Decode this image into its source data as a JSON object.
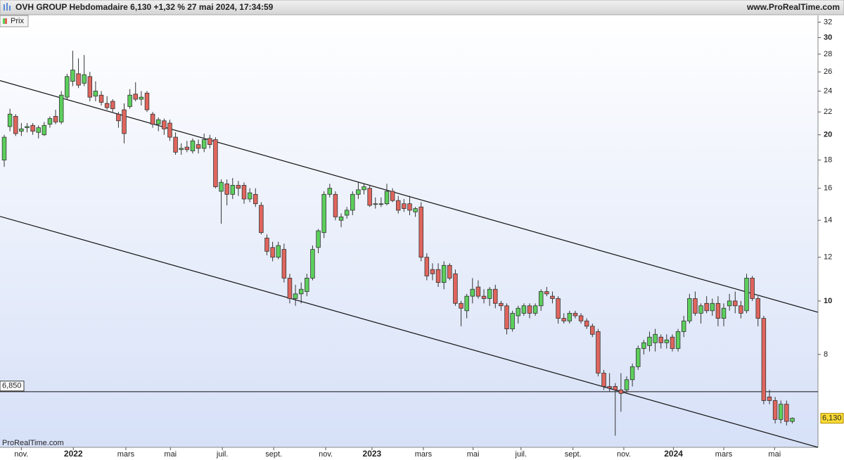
{
  "chart_data": {
    "type": "candlestick",
    "title": "OVH GROUP Hebdomadaire 6,130 +1,32 % 27 mai 2024, 17:34:59",
    "source": "www.ProRealTime.com",
    "watermark": "ProRealTime.com",
    "legend": "Prix",
    "log_scale": true,
    "up_color": "#5ccf5c",
    "down_color": "#e0655d",
    "ylim": [
      5.43,
      32.9
    ],
    "yticks": [
      8,
      10,
      12,
      14,
      16,
      18,
      20,
      22,
      24,
      26,
      28,
      30,
      32
    ],
    "xlim": [
      -0.74,
      142.5
    ],
    "xticks": [
      {
        "value": 3.0,
        "label": "nov."
      },
      {
        "value": 12.1,
        "label": "2022"
      },
      {
        "value": 21.3,
        "label": "mars"
      },
      {
        "value": 29.1,
        "label": "mai"
      },
      {
        "value": 38.2,
        "label": "juil."
      },
      {
        "value": 47.2,
        "label": "sept."
      },
      {
        "value": 56.3,
        "label": "nov."
      },
      {
        "value": 64.4,
        "label": "2023"
      },
      {
        "value": 73.4,
        "label": "mars"
      },
      {
        "value": 82.1,
        "label": "mai"
      },
      {
        "value": 90.5,
        "label": "juil."
      },
      {
        "value": 99.6,
        "label": "sept."
      },
      {
        "value": 108.5,
        "label": "nov."
      },
      {
        "value": 117.2,
        "label": "2024"
      },
      {
        "value": 126.0,
        "label": "mars"
      },
      {
        "value": 134.9,
        "label": "mai"
      }
    ],
    "open": [
      18.0,
      20.7,
      21.6,
      20.3,
      20.6,
      20.8,
      20.2,
      20.0,
      20.9,
      21.6,
      21.1,
      23.4,
      25.0,
      25.8,
      24.8,
      25.5,
      23.5,
      23.6,
      22.8,
      23.0,
      21.8,
      22.2,
      22.5,
      23.7,
      23.2,
      23.8,
      21.8,
      20.9,
      21.2,
      21.0,
      19.8,
      18.8,
      19.0,
      18.7,
      19.2,
      18.9,
      19.7,
      19.6,
      15.8,
      16.3,
      15.6,
      16.2,
      16.2,
      15.3,
      15.6,
      14.9,
      13.0,
      12.5,
      12.0,
      12.4,
      11.0,
      10.1,
      10.3,
      10.4,
      11.0,
      12.5,
      13.3,
      15.6,
      15.6,
      14.0,
      14.3,
      14.6,
      15.6,
      15.9,
      16.0,
      15.0,
      15.0,
      15.0,
      15.8,
      15.2,
      15.0,
      15.0,
      14.5,
      14.8,
      12.0,
      11.4,
      11.4,
      10.8,
      11.6,
      11.2,
      9.9,
      9.6,
      10.2,
      10.6,
      10.2,
      10.1,
      10.5,
      9.9,
      9.8,
      8.9,
      9.4,
      9.5,
      9.8,
      9.5,
      9.8,
      10.4,
      10.2,
      10.1,
      9.3,
      9.2,
      9.5,
      9.4,
      9.2,
      9.0,
      8.8,
      7.4,
      7.0,
      7.0,
      6.9,
      6.9,
      7.2,
      7.6,
      8.2,
      8.3,
      8.4,
      8.6,
      8.4,
      8.6,
      8.2,
      8.8,
      9.2,
      10.1,
      9.5,
      9.9,
      9.6,
      9.9,
      9.3,
      9.8,
      10.0,
      9.8,
      9.6,
      11.0,
      10.1,
      9.3,
      6.7,
      6.6,
      6.1,
      6.5,
      6.05
    ],
    "high": [
      20.0,
      22.3,
      21.8,
      21.0,
      21.0,
      21.0,
      20.8,
      21.1,
      21.6,
      22.2,
      24.0,
      25.8,
      28.4,
      27.5,
      27.9,
      26.0,
      25.0,
      24.0,
      23.5,
      23.2,
      22.0,
      22.8,
      24.2,
      24.9,
      24.0,
      24.0,
      22.0,
      21.5,
      21.4,
      21.3,
      20.2,
      19.3,
      19.5,
      19.7,
      19.6,
      20.1,
      20.0,
      19.8,
      16.6,
      16.6,
      16.7,
      16.5,
      16.4,
      16.0,
      16.0,
      15.1,
      13.2,
      12.8,
      12.8,
      12.7,
      11.2,
      10.7,
      10.8,
      11.2,
      12.6,
      13.5,
      15.8,
      16.3,
      15.8,
      14.4,
      14.8,
      15.8,
      16.4,
      16.3,
      16.2,
      15.4,
      15.4,
      16.3,
      16.0,
      15.5,
      15.3,
      15.5,
      14.8,
      15.1,
      12.2,
      11.7,
      11.7,
      11.8,
      11.7,
      11.4,
      10.0,
      10.3,
      11.0,
      10.9,
      10.5,
      10.6,
      10.7,
      10.0,
      9.9,
      9.6,
      9.8,
      9.9,
      9.9,
      9.9,
      10.5,
      10.6,
      10.4,
      10.2,
      9.5,
      9.6,
      9.6,
      9.5,
      9.3,
      9.1,
      8.9,
      7.5,
      7.4,
      7.1,
      7.4,
      7.3,
      7.7,
      8.3,
      8.5,
      8.8,
      8.9,
      8.7,
      8.7,
      8.7,
      8.9,
      9.4,
      10.3,
      10.4,
      9.9,
      10.2,
      10.1,
      10.2,
      9.9,
      10.3,
      10.4,
      10.0,
      11.2,
      11.1,
      10.2,
      9.4,
      6.9,
      6.7,
      6.6,
      6.6,
      6.15
    ],
    "low": [
      17.5,
      20.3,
      19.9,
      19.9,
      20.2,
      20.0,
      19.7,
      19.9,
      20.6,
      20.9,
      20.9,
      23.2,
      24.5,
      24.3,
      24.5,
      23.0,
      23.0,
      22.6,
      22.2,
      22.0,
      20.6,
      19.3,
      22.3,
      23.0,
      22.6,
      22.0,
      20.6,
      20.3,
      20.0,
      19.5,
      18.4,
      18.4,
      18.6,
      18.5,
      18.5,
      18.6,
      18.9,
      16.0,
      13.8,
      14.9,
      15.3,
      15.5,
      15.0,
      15.1,
      14.8,
      13.2,
      12.1,
      11.8,
      11.9,
      10.8,
      9.9,
      9.8,
      9.9,
      10.2,
      10.9,
      12.2,
      13.0,
      15.4,
      14.0,
      13.6,
      14.1,
      14.3,
      15.3,
      15.6,
      14.8,
      14.7,
      14.8,
      14.9,
      15.1,
      14.4,
      14.5,
      14.3,
      14.2,
      11.8,
      10.9,
      10.9,
      10.6,
      10.5,
      10.9,
      9.8,
      9.0,
      9.3,
      9.9,
      10.1,
      9.9,
      9.8,
      9.7,
      9.6,
      8.7,
      8.8,
      9.1,
      9.4,
      9.3,
      9.4,
      9.6,
      10.2,
      9.9,
      9.1,
      9.1,
      9.1,
      9.3,
      9.1,
      8.9,
      8.6,
      7.3,
      6.9,
      6.85,
      5.7,
      6.3,
      6.8,
      7.0,
      7.5,
      8.0,
      8.1,
      8.1,
      8.2,
      8.2,
      8.1,
      8.1,
      8.6,
      9.1,
      9.4,
      9.1,
      9.5,
      9.4,
      9.0,
      9.0,
      9.6,
      9.5,
      9.3,
      9.5,
      10.0,
      9.0,
      6.5,
      6.5,
      6.0,
      6.0,
      5.95,
      6.0
    ],
    "close": [
      19.8,
      21.8,
      20.1,
      20.5,
      20.7,
      20.3,
      20.6,
      20.8,
      21.4,
      21.1,
      23.6,
      25.5,
      26.2,
      24.6,
      25.7,
      23.4,
      24.0,
      22.9,
      22.4,
      22.3,
      21.2,
      20.1,
      23.6,
      23.2,
      23.4,
      22.2,
      20.9,
      21.3,
      20.5,
      19.8,
      18.6,
      18.9,
      18.8,
      19.5,
      18.9,
      19.6,
      19.2,
      16.1,
      16.4,
      15.6,
      16.2,
      16.0,
      15.3,
      15.7,
      15.0,
      13.3,
      12.3,
      12.0,
      12.6,
      11.0,
      10.1,
      10.3,
      10.5,
      11.0,
      12.4,
      13.4,
      15.6,
      16.0,
      14.2,
      14.2,
      14.6,
      15.6,
      15.9,
      16.1,
      14.9,
      15.0,
      15.0,
      15.8,
      15.2,
      14.6,
      14.7,
      14.6,
      14.7,
      12.0,
      11.1,
      11.2,
      10.8,
      11.6,
      11.0,
      9.9,
      9.7,
      10.2,
      10.5,
      10.2,
      10.1,
      10.5,
      9.9,
      9.8,
      8.9,
      9.5,
      9.7,
      9.8,
      9.5,
      9.8,
      10.4,
      10.3,
      10.1,
      9.3,
      9.2,
      9.5,
      9.4,
      9.2,
      9.0,
      8.7,
      7.4,
      7.0,
      6.95,
      6.9,
      6.8,
      7.2,
      7.6,
      8.2,
      8.4,
      8.6,
      8.7,
      8.4,
      8.5,
      8.2,
      8.8,
      9.2,
      10.1,
      9.5,
      9.8,
      9.6,
      9.9,
      9.3,
      9.7,
      10.0,
      9.8,
      9.5,
      11.0,
      10.1,
      9.3,
      6.6,
      6.6,
      6.1,
      6.5,
      6.05,
      6.13
    ],
    "trendlines": [
      {
        "x": [
          -0.74,
          142.5
        ],
        "y": [
          25.07,
          9.54
        ]
      },
      {
        "x": [
          -0.74,
          142.5
        ],
        "y": [
          14.23,
          5.43
        ]
      }
    ],
    "hline": {
      "value": 6.85,
      "label": "6,850"
    },
    "last_price": {
      "value": 6.13,
      "label": "6,130"
    }
  }
}
